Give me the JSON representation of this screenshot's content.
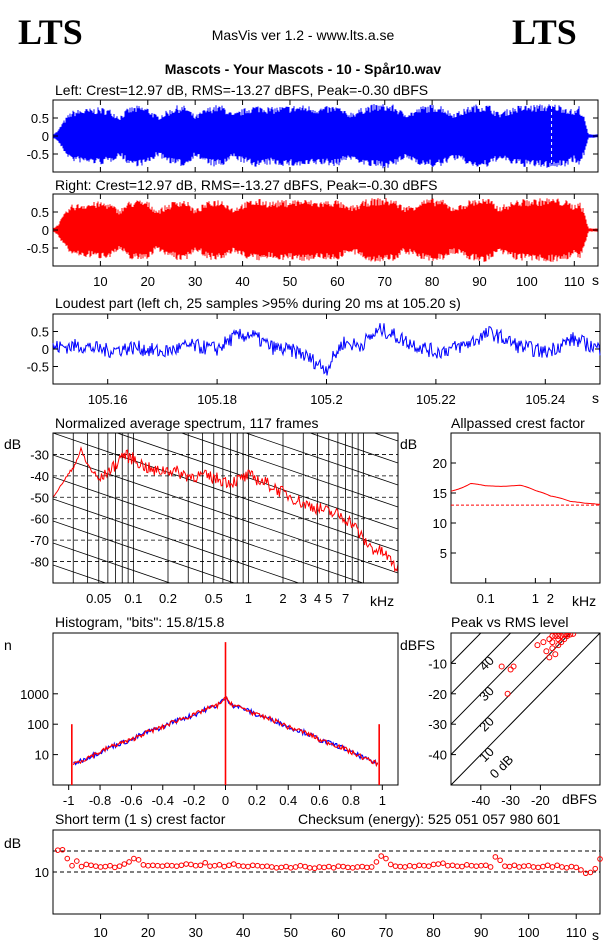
{
  "header": {
    "logo_left": "LTS",
    "logo_right": "LTS",
    "app": "MasVis ver 1.2 - www.lts.a.se",
    "file_title": "Mascots - Your Mascots - 10 - Spår10.wav"
  },
  "colors": {
    "left_channel": "#0000ff",
    "right_channel": "#ff0000",
    "marker": "#ff0000",
    "grid": "#000000"
  },
  "chart_data": [
    {
      "id": "left",
      "type": "line",
      "title": "Left: Crest=12.97 dB, RMS=-13.27 dBFS, Peak=-0.30 dBFS",
      "ylim": [
        -1,
        1
      ],
      "yticks": [
        0.5,
        0,
        -0.5
      ],
      "ytick_labels": [
        "0.5",
        "0",
        "-0.5"
      ],
      "xlim": [
        0,
        115
      ],
      "envelope_x": [
        0,
        1,
        2,
        3,
        4,
        6,
        8,
        10,
        12,
        14,
        16,
        18,
        20,
        22,
        24,
        26,
        28,
        30,
        32,
        34,
        36,
        38,
        40,
        42,
        44,
        46,
        48,
        50,
        52,
        54,
        56,
        58,
        60,
        62,
        64,
        66,
        68,
        70,
        72,
        74,
        76,
        78,
        80,
        82,
        84,
        86,
        88,
        90,
        92,
        94,
        96,
        98,
        100,
        102,
        104,
        106,
        108,
        110,
        111,
        112,
        113
      ],
      "envelope_y": [
        0.05,
        0.15,
        0.4,
        0.6,
        0.75,
        0.8,
        0.82,
        0.85,
        0.8,
        0.6,
        0.85,
        0.9,
        0.85,
        0.6,
        0.75,
        0.9,
        0.9,
        0.6,
        0.8,
        0.92,
        0.9,
        0.65,
        0.8,
        0.9,
        0.92,
        0.85,
        0.88,
        0.9,
        0.92,
        0.9,
        0.85,
        0.88,
        0.9,
        0.7,
        0.75,
        0.9,
        0.95,
        0.95,
        0.92,
        0.7,
        0.75,
        0.9,
        0.93,
        0.92,
        0.7,
        0.75,
        0.9,
        0.95,
        0.93,
        0.7,
        0.8,
        0.9,
        0.92,
        0.93,
        0.95,
        0.95,
        0.9,
        0.75,
        0.9,
        0.6,
        0.05
      ],
      "marker_x": 105.2
    },
    {
      "id": "right",
      "type": "line",
      "title": "Right: Crest=12.97 dB, RMS=-13.27 dBFS, Peak=-0.30 dBFS",
      "ylim": [
        -1,
        1
      ],
      "yticks": [
        0.5,
        0,
        -0.5
      ],
      "ytick_labels": [
        "0.5",
        "0",
        "-0.5"
      ],
      "xlim": [
        0,
        115
      ],
      "xticks": [
        10,
        20,
        30,
        40,
        50,
        60,
        70,
        80,
        90,
        100,
        110
      ],
      "xtick_labels": [
        "10",
        "20",
        "30",
        "40",
        "50",
        "60",
        "70",
        "80",
        "90",
        "100",
        "110"
      ],
      "xunit": "s"
    },
    {
      "id": "loudest",
      "type": "line",
      "title": "Loudest part (left  ch, 25 samples >95% during 20 ms at 105.20 s)",
      "xlim": [
        105.15,
        105.25
      ],
      "ylim": [
        -1,
        1
      ],
      "yticks": [
        0.5,
        0,
        -0.5
      ],
      "ytick_labels": [
        "0.5",
        "0",
        "-0.5"
      ],
      "xticks": [
        105.16,
        105.18,
        105.2,
        105.22,
        105.24
      ],
      "xtick_labels": [
        "105.16",
        "105.18",
        "105.2",
        "105.22",
        "105.24"
      ],
      "xunit": "s",
      "shape_x": [
        105.15,
        105.155,
        105.16,
        105.165,
        105.17,
        105.175,
        105.18,
        105.183,
        105.186,
        105.19,
        105.195,
        105.2,
        105.203,
        105.206,
        105.21,
        105.215,
        105.22,
        105.225,
        105.23,
        105.235,
        105.24,
        105.245,
        105.25
      ],
      "shape_y": [
        0.05,
        0.1,
        -0.05,
        0.05,
        -0.1,
        0.1,
        0.0,
        0.35,
        0.45,
        0.05,
        -0.1,
        -0.6,
        0.2,
        0.1,
        0.6,
        0.2,
        -0.1,
        0.1,
        0.5,
        0.1,
        -0.1,
        0.3,
        0.0
      ]
    },
    {
      "id": "spectrum",
      "type": "line",
      "title": "Normalized average spectrum, 117 frames",
      "yunit": "dB",
      "xunit": "kHz",
      "xscale": "log",
      "xlim": [
        0.02,
        20
      ],
      "ylim": [
        -90,
        -20
      ],
      "yticks": [
        -30,
        -40,
        -50,
        -60,
        -70,
        -80
      ],
      "ytick_labels": [
        "-30",
        "-40",
        "-50",
        "-60",
        "-70",
        "-80"
      ],
      "xticks": [
        0.05,
        0.1,
        0.2,
        0.5,
        1,
        2,
        3,
        4,
        5,
        7
      ],
      "xtick_labels": [
        "0.05",
        "0.1",
        "0.2",
        "0.5",
        "1",
        "2",
        "3",
        "4",
        "5",
        "7"
      ],
      "x": [
        0.02,
        0.025,
        0.03,
        0.035,
        0.04,
        0.05,
        0.06,
        0.07,
        0.08,
        0.1,
        0.12,
        0.15,
        0.2,
        0.3,
        0.4,
        0.5,
        0.7,
        1,
        1.5,
        2,
        3,
        4,
        5,
        6,
        7,
        8,
        10,
        12,
        15,
        20
      ],
      "y": [
        -50,
        -42,
        -36,
        -28,
        -35,
        -42,
        -38,
        -35,
        -30,
        -32,
        -35,
        -38,
        -37,
        -40,
        -40,
        -41,
        -43,
        -40,
        -44,
        -48,
        -53,
        -55,
        -57,
        -58,
        -60,
        -62,
        -70,
        -74,
        -76,
        -84
      ]
    },
    {
      "id": "allpass",
      "type": "line",
      "title": "Allpassed crest factor",
      "yunit": "dB",
      "xunit": "kHz",
      "xscale": "log",
      "xlim": [
        0.02,
        20
      ],
      "ylim": [
        0,
        25
      ],
      "yticks": [
        20,
        15,
        10,
        5
      ],
      "ytick_labels": [
        "20",
        "15",
        "10",
        "5"
      ],
      "xticks": [
        0.1,
        1,
        2
      ],
      "xtick_labels": [
        "0.1",
        "1",
        "2"
      ],
      "x": [
        0.02,
        0.05,
        0.1,
        0.2,
        0.5,
        1,
        2,
        5,
        10,
        20
      ],
      "y": [
        15.3,
        16.6,
        16.2,
        16.1,
        16.3,
        15.4,
        14.5,
        13.6,
        13.3,
        13.1
      ],
      "reference": 12.97
    },
    {
      "id": "histogram",
      "type": "line",
      "title": "Histogram, \"bits\": 15.8/15.8",
      "yunit": "n",
      "yscale": "log",
      "xlim": [
        -1.1,
        1.1
      ],
      "ylim": [
        1,
        100000
      ],
      "yticks": [
        1000,
        100,
        10
      ],
      "ytick_labels": [
        "1000",
        "100",
        "10"
      ],
      "xticks": [
        -1,
        -0.8,
        -0.6,
        -0.4,
        -0.2,
        0,
        0.2,
        0.4,
        0.6,
        0.8,
        1
      ],
      "xtick_labels": [
        "-1",
        "-0.8",
        "-0.6",
        "-0.4",
        "-0.2",
        "0",
        "0.2",
        "0.4",
        "0.6",
        "0.8",
        "1"
      ],
      "x": [
        -0.97,
        -0.9,
        -0.8,
        -0.6,
        -0.4,
        -0.2,
        -0.05,
        0,
        0.05,
        0.2,
        0.4,
        0.6,
        0.8,
        0.9,
        0.97
      ],
      "y": [
        5,
        7,
        12,
        30,
        80,
        200,
        420,
        700,
        420,
        200,
        80,
        30,
        12,
        7,
        5
      ],
      "peaks": [
        {
          "x": -0.98,
          "y": 100
        },
        {
          "x": 0.0,
          "y": 50000
        },
        {
          "x": 0.98,
          "y": 100
        }
      ]
    },
    {
      "id": "peak_vs_rms",
      "type": "scatter",
      "title": "Peak vs RMS level",
      "yunit": "dBFS",
      "xunit": "dBFS",
      "xlim": [
        -50,
        0
      ],
      "ylim": [
        -50,
        0
      ],
      "yticks": [
        -10,
        -20,
        -30,
        -40
      ],
      "ytick_labels": [
        "-10",
        "-20",
        "-30",
        "-40"
      ],
      "xticks": [
        -40,
        -30,
        -20
      ],
      "xtick_labels": [
        "-40",
        "-30",
        "-20"
      ],
      "diag_labels": [
        "40",
        "30",
        "20",
        "10",
        "0 dB"
      ],
      "points_x": [
        -33,
        -30,
        -29,
        -31,
        -21,
        -19,
        -17,
        -16,
        -15,
        -14,
        -13,
        -12,
        -11,
        -10,
        -9,
        -18,
        -16,
        -14,
        -13,
        -15,
        -17,
        -12,
        -11,
        -14,
        -16
      ],
      "points_y": [
        -11,
        -12,
        -11,
        -20,
        -4,
        -3,
        -2,
        -1,
        -1,
        -1,
        -1,
        -0.5,
        -0.5,
        -0.5,
        -0.3,
        -6,
        -5,
        -4,
        -3,
        -7,
        -8,
        -2,
        -1,
        -2,
        -3
      ]
    },
    {
      "id": "shortterm",
      "type": "scatter",
      "title": "Short term (1 s) crest factor",
      "checksum": "Checksum (energy):   525 051 057 980 601",
      "yunit": "dB",
      "xunit": "s",
      "xlim": [
        0,
        115
      ],
      "ylim": [
        0,
        20
      ],
      "yticks": [
        10
      ],
      "ytick_labels": [
        "10"
      ],
      "xticks": [
        10,
        20,
        30,
        40,
        50,
        60,
        70,
        80,
        90,
        100,
        110
      ],
      "xtick_labels": [
        "10",
        "20",
        "30",
        "40",
        "50",
        "60",
        "70",
        "80",
        "90",
        "100",
        "110"
      ],
      "reference_lines": [
        10,
        15
      ],
      "values": [
        15.2,
        15.3,
        13.2,
        11.5,
        12.6,
        11.3,
        11.8,
        11.6,
        11.4,
        11.2,
        11.3,
        11.5,
        11.1,
        11.4,
        11.9,
        12.4,
        13.2,
        12.9,
        11.7,
        11.5,
        11.6,
        11.5,
        11.4,
        11.6,
        11.5,
        11.4,
        11.6,
        11.9,
        11.8,
        11.5,
        11.6,
        12.2,
        11.4,
        11.5,
        11.7,
        11.3,
        11.6,
        11.9,
        11.5,
        11.4,
        11.3,
        11.6,
        11.5,
        11.3,
        11.4,
        11.2,
        11.0,
        11.1,
        11.3,
        11.0,
        11.2,
        11.5,
        11.3,
        11.0,
        10.9,
        11.2,
        11.1,
        11.3,
        11.0,
        11.4,
        11.3,
        11.1,
        11.0,
        11.2,
        11.3,
        11.1,
        11.2,
        12.4,
        13.8,
        13.2,
        11.8,
        11.4,
        11.3,
        11.2,
        11.5,
        11.3,
        11.6,
        11.5,
        11.4,
        11.8,
        11.9,
        12.1,
        11.5,
        11.6,
        11.4,
        11.3,
        11.7,
        11.5,
        11.4,
        11.5,
        11.6,
        11.2,
        13.6,
        12.8,
        11.4,
        11.3,
        11.6,
        11.2,
        11.4,
        11.5,
        11.2,
        11.1,
        11.3,
        11.6,
        11.2,
        11.6,
        11.2,
        11.0,
        11.3,
        11.1,
        10.5,
        9.7,
        9.9,
        10.8,
        13.1
      ]
    }
  ]
}
